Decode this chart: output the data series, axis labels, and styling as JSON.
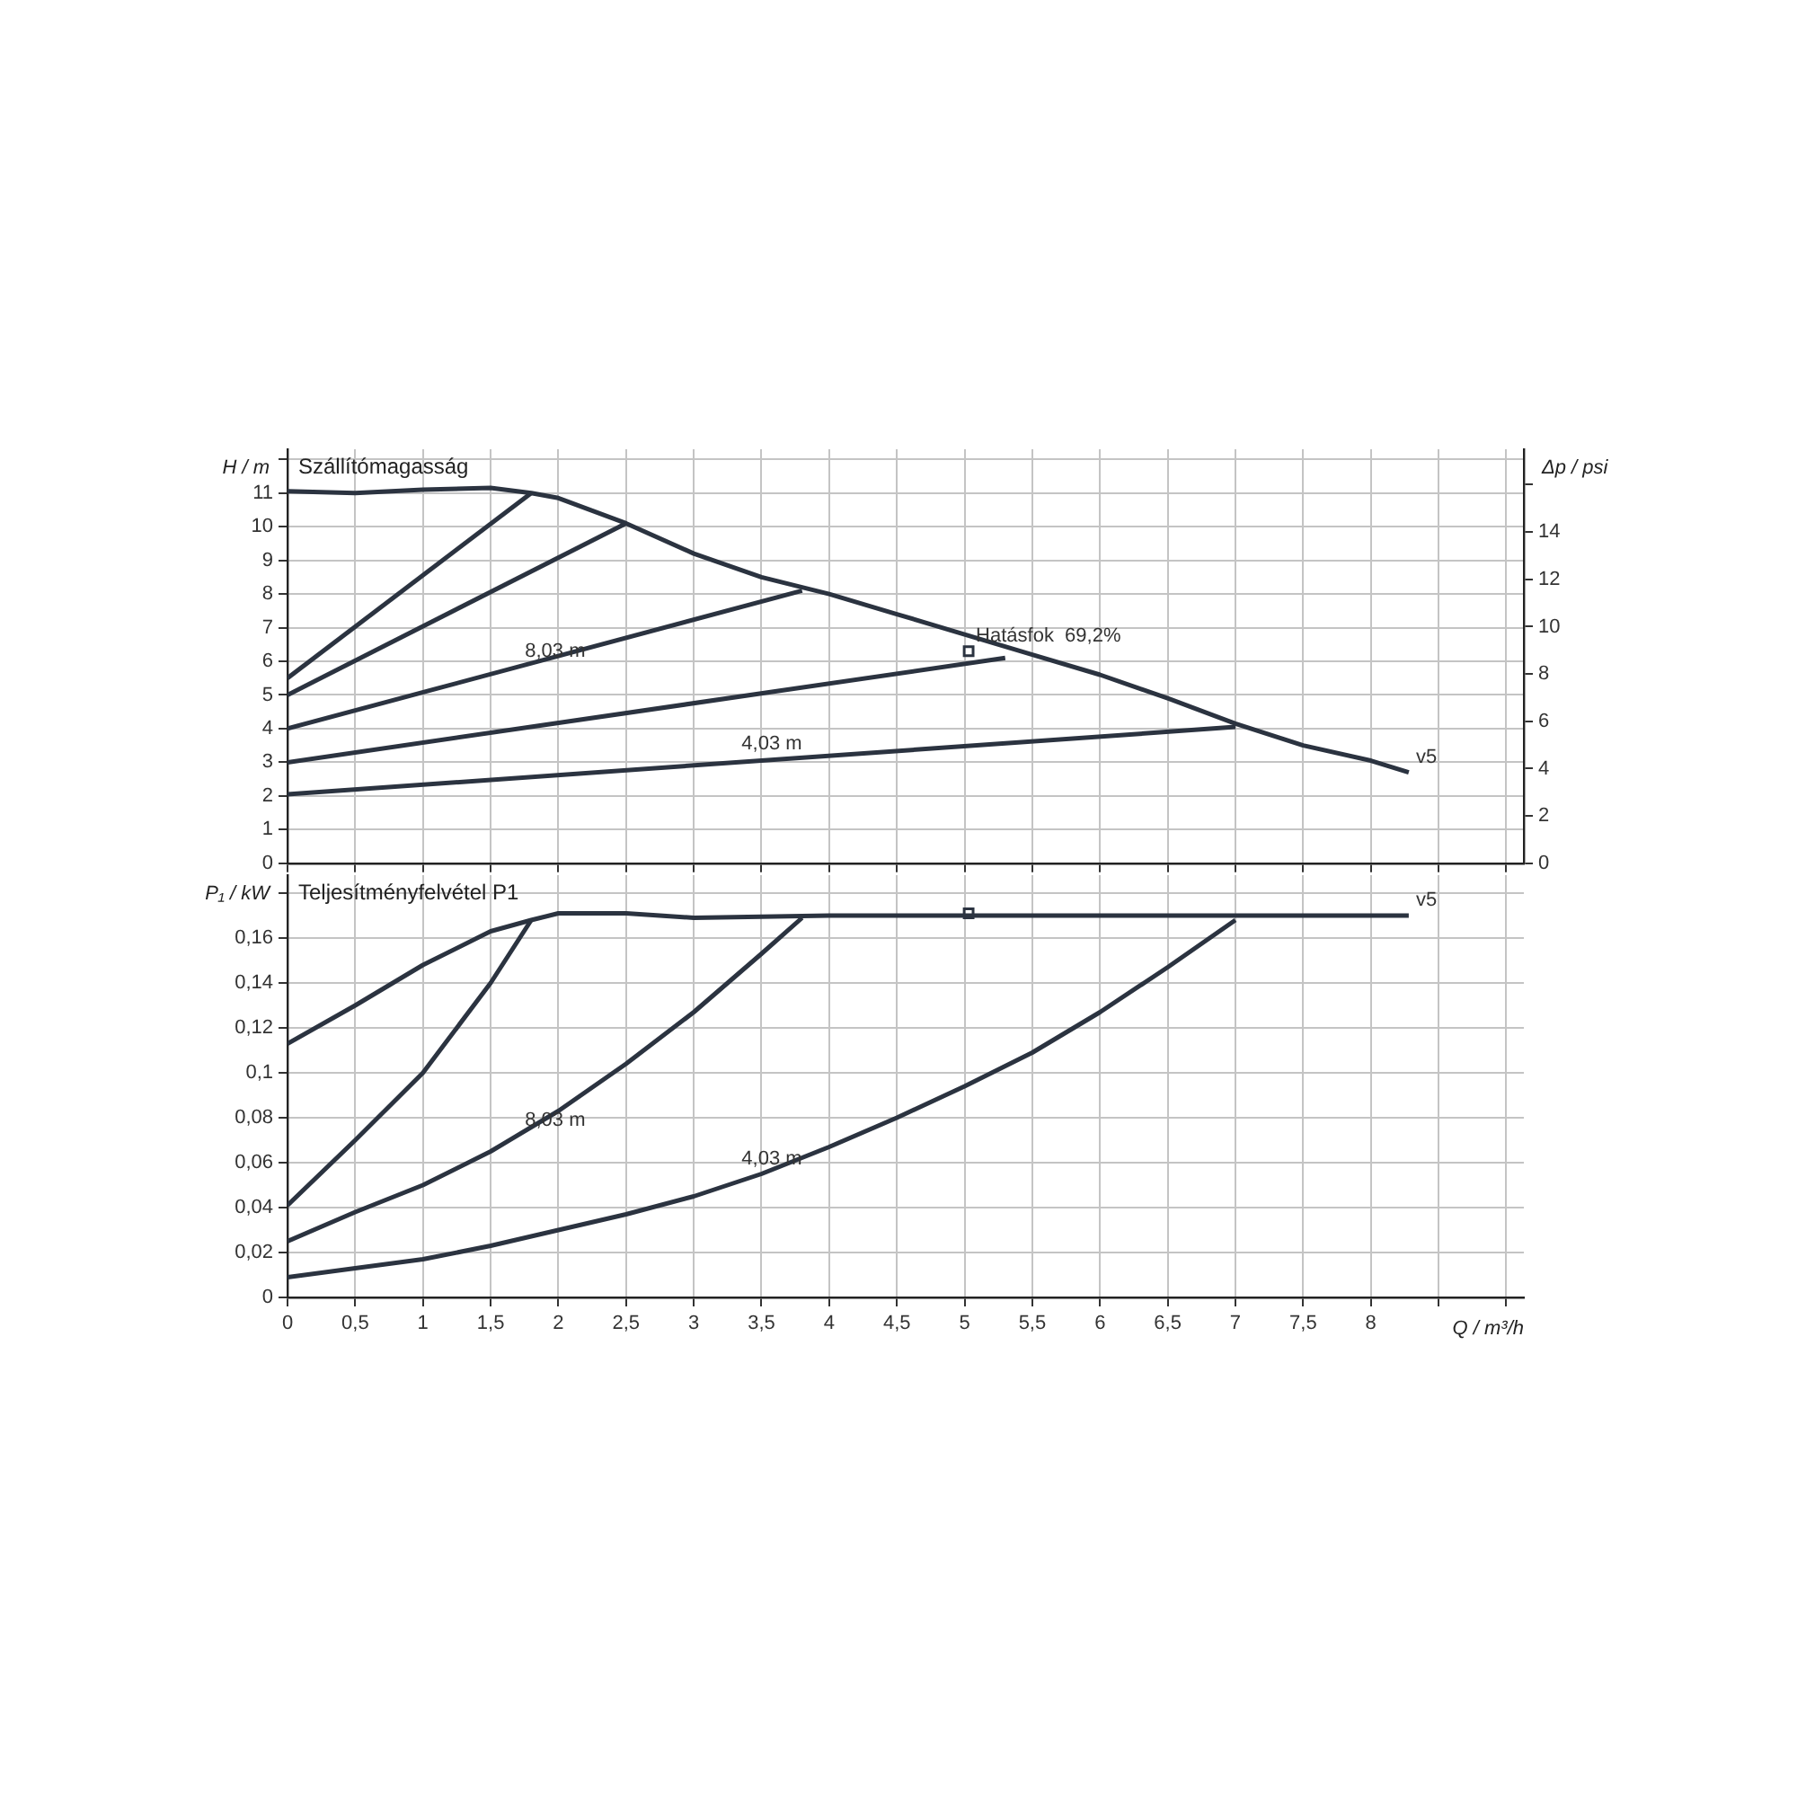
{
  "chart_data": [
    {
      "type": "line",
      "title": "Szállítómagasság",
      "ylabel": "H / m",
      "y2label": "Δp / psi",
      "xlim": [
        0,
        9.13
      ],
      "xticks": [
        {
          "value": 0,
          "label": null
        },
        {
          "value": 0.5,
          "label": null
        },
        {
          "value": 1,
          "label": null
        },
        {
          "value": 1.5,
          "label": null
        },
        {
          "value": 2,
          "label": null
        },
        {
          "value": 2.5,
          "label": null
        },
        {
          "value": 3,
          "label": null
        },
        {
          "value": 3.5,
          "label": null
        },
        {
          "value": 4,
          "label": null
        },
        {
          "value": 4.5,
          "label": null
        },
        {
          "value": 5,
          "label": null
        },
        {
          "value": 5.5,
          "label": null
        },
        {
          "value": 6,
          "label": null
        },
        {
          "value": 6.5,
          "label": null
        },
        {
          "value": 7,
          "label": null
        },
        {
          "value": 7.5,
          "label": null
        },
        {
          "value": 8,
          "label": null
        },
        {
          "value": 8.5,
          "label": null
        },
        {
          "value": 9,
          "label": null
        }
      ],
      "ylim": [
        0,
        12.3
      ],
      "yticks": [
        0,
        1,
        2,
        3,
        4,
        5,
        6,
        7,
        8,
        9,
        10,
        11,
        {
          "value": 12,
          "label": null
        }
      ],
      "y2lim": [
        0,
        17.5
      ],
      "y2ticks": [
        0,
        2,
        4,
        6,
        8,
        10,
        12,
        14,
        {
          "value": 16,
          "label": null
        }
      ],
      "grid": true,
      "legend": false,
      "tick_labels": "y",
      "marker": "none",
      "series": [
        {
          "color": "#2b3340",
          "x": [
            0,
            0.5,
            1,
            1.5,
            1.8,
            2,
            2.5,
            3,
            3.5,
            4,
            4.5,
            5,
            5.5,
            6,
            6.5,
            7,
            7.5,
            8,
            8.28
          ],
          "values": [
            11.05,
            11.0,
            11.1,
            11.15,
            11.0,
            10.85,
            10.1,
            9.2,
            8.5,
            8.0,
            7.4,
            6.8,
            6.2,
            5.6,
            4.9,
            4.15,
            3.5,
            3.05,
            2.7
          ]
        },
        {
          "color": "#2b3340",
          "x": [
            0,
            1.8
          ],
          "values": [
            5.5,
            11.0
          ]
        },
        {
          "color": "#2b3340",
          "x": [
            0,
            2.5
          ],
          "values": [
            5.0,
            10.1
          ]
        },
        {
          "color": "#2b3340",
          "x": [
            0,
            3.8
          ],
          "values": [
            4.0,
            8.1
          ]
        },
        {
          "color": "#2b3340",
          "x": [
            0,
            5.3
          ],
          "values": [
            3.0,
            6.1
          ]
        },
        {
          "color": "#2b3340",
          "x": [
            0,
            7
          ],
          "values": [
            2.05,
            4.05
          ]
        },
        {
          "type": "scatter",
          "marker": "square",
          "color": "#2b3340",
          "x": [
            5.03
          ],
          "values": [
            6.3
          ]
        }
      ],
      "annotations": [
        {
          "text": "Hatásfok  69,2%",
          "x": 5.03,
          "y": 6.3
        },
        {
          "text": "8,03 m",
          "x": 1.7,
          "y": 5.83
        },
        {
          "text": "4,03 m",
          "x": 3.3,
          "y": 3.1
        },
        {
          "text": "v5",
          "x": 8.28,
          "y": 2.7
        }
      ]
    },
    {
      "type": "line",
      "title": "Teljesítményfelvétel P1",
      "ylabel": "P₁ / kW",
      "xlabel": "Q / m³/h",
      "xlim": [
        0,
        9.13
      ],
      "xticks": [
        0,
        {
          "value": 0.5,
          "label": "0,5"
        },
        1,
        {
          "value": 1.5,
          "label": "1,5"
        },
        2,
        {
          "value": 2.5,
          "label": "2,5"
        },
        3,
        {
          "value": 3.5,
          "label": "3,5"
        },
        4,
        {
          "value": 4.5,
          "label": "4,5"
        },
        5,
        {
          "value": 5.5,
          "label": "5,5"
        },
        6,
        {
          "value": 6.5,
          "label": "6,5"
        },
        7,
        {
          "value": 7.5,
          "label": "7,5"
        },
        8,
        {
          "value": 8.5,
          "label": null
        },
        {
          "value": 9,
          "label": null
        }
      ],
      "ylim": [
        0,
        0.188
      ],
      "yticks": [
        0,
        {
          "value": 0.02,
          "label": "0,02"
        },
        {
          "value": 0.04,
          "label": "0,04"
        },
        {
          "value": 0.06,
          "label": "0,06"
        },
        {
          "value": 0.08,
          "label": "0,08"
        },
        {
          "value": 0.1,
          "label": "0,1"
        },
        {
          "value": 0.12,
          "label": "0,12"
        },
        {
          "value": 0.14,
          "label": "0,14"
        },
        {
          "value": 0.16,
          "label": "0,16"
        },
        {
          "value": 0.18,
          "label": null
        }
      ],
      "grid": true,
      "legend": false,
      "marker": "none",
      "series": [
        {
          "color": "#2b3340",
          "x": [
            0,
            0.5,
            1,
            1.5,
            1.8,
            2,
            2.5,
            3,
            4,
            5,
            6,
            7,
            8,
            8.28
          ],
          "values": [
            0.113,
            0.13,
            0.148,
            0.163,
            0.168,
            0.171,
            0.171,
            0.169,
            0.17,
            0.17,
            0.17,
            0.17,
            0.17,
            0.17
          ]
        },
        {
          "color": "#2b3340",
          "x": [
            0,
            0.5,
            1,
            1.5,
            1.8
          ],
          "values": [
            0.041,
            0.07,
            0.1,
            0.14,
            0.168
          ]
        },
        {
          "color": "#2b3340",
          "x": [
            0,
            0.5,
            1,
            1.5,
            2,
            2.5,
            3,
            3.5,
            3.8
          ],
          "values": [
            0.025,
            0.038,
            0.05,
            0.065,
            0.083,
            0.104,
            0.127,
            0.153,
            0.169
          ]
        },
        {
          "color": "#2b3340",
          "x": [
            0,
            0.5,
            1,
            1.5,
            2,
            2.5,
            3,
            3.5,
            4,
            4.5,
            5,
            5.5,
            6,
            6.5,
            7
          ],
          "values": [
            0.009,
            0.013,
            0.017,
            0.023,
            0.03,
            0.037,
            0.045,
            0.055,
            0.067,
            0.08,
            0.094,
            0.109,
            0.127,
            0.147,
            0.168
          ]
        },
        {
          "type": "scatter",
          "marker": "square",
          "color": "#2b3340",
          "x": [
            5.03
          ],
          "values": [
            0.171
          ]
        }
      ],
      "annotations": [
        {
          "text": "8,03 m",
          "x": 1.7,
          "y": 0.0722
        },
        {
          "text": "4,03 m",
          "x": 3.3,
          "y": 0.055
        },
        {
          "text": "v5",
          "x": 8.28,
          "y": 0.17
        }
      ]
    }
  ]
}
